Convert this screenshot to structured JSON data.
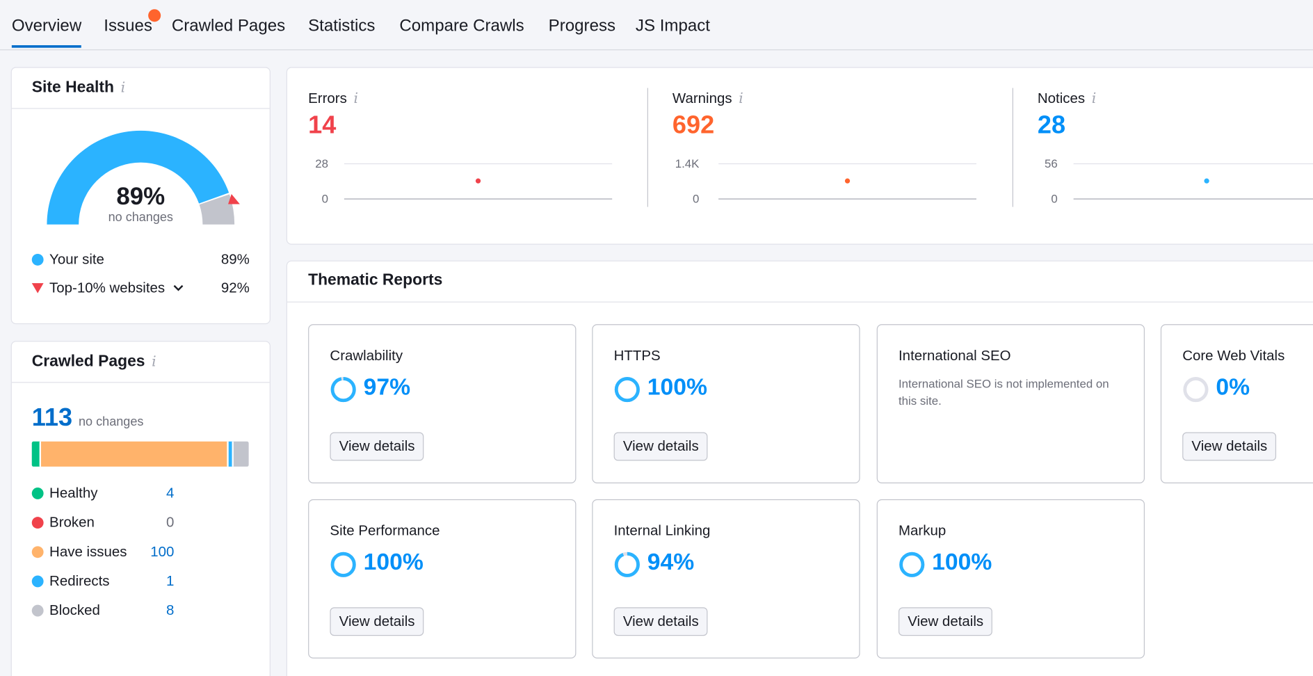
{
  "tabs": [
    {
      "label": "Overview",
      "active": true
    },
    {
      "label": "Issues",
      "has_dot": true
    },
    {
      "label": "Crawled Pages"
    },
    {
      "label": "Statistics"
    },
    {
      "label": "Compare Crawls"
    },
    {
      "label": "Progress"
    },
    {
      "label": "JS Impact"
    }
  ],
  "site_health": {
    "title": "Site Health",
    "info": "i",
    "value": "89%",
    "value_num": 89,
    "subtitle": "no changes",
    "top10_num": 92,
    "legend": [
      {
        "label": "Your site",
        "value": "89%",
        "color": "#2bb3ff"
      },
      {
        "label": "Top-10% websites",
        "value": "92%",
        "color": "#f0424b"
      }
    ]
  },
  "crawled_pages": {
    "title": "Crawled Pages",
    "info": "i",
    "total": "113",
    "total_note": "no changes",
    "bar": [
      {
        "label": "Healthy",
        "count": 4,
        "color": "#00c285"
      },
      {
        "label": "Broken",
        "count": 0,
        "color": "#f0424b"
      },
      {
        "label": "Have issues",
        "count": 100,
        "color": "#ffb36b"
      },
      {
        "label": "Redirects",
        "count": 1,
        "color": "#2bb3ff"
      },
      {
        "label": "Blocked",
        "count": 8,
        "color": "#c2c4cc"
      }
    ],
    "rows": [
      {
        "label": "Healthy",
        "value": "4"
      },
      {
        "label": "Broken",
        "value": "0"
      },
      {
        "label": "Have issues",
        "value": "100"
      },
      {
        "label": "Redirects",
        "value": "1"
      },
      {
        "label": "Blocked",
        "value": "8"
      }
    ]
  },
  "issues": [
    {
      "label": "Errors",
      "info": "i",
      "value": "14",
      "axis_max": "28",
      "axis_min": "0",
      "color": "#f0424b"
    },
    {
      "label": "Warnings",
      "info": "i",
      "value": "692",
      "axis_max": "1.4K",
      "axis_min": "0",
      "color": "#ff642d"
    },
    {
      "label": "Notices",
      "info": "i",
      "value": "28",
      "axis_max": "56",
      "axis_min": "0",
      "color": "#008ff8"
    }
  ],
  "thematic": {
    "title": "Thematic Reports",
    "button_label": "View details",
    "cards": [
      {
        "title": "Crawlability",
        "pct": "97%",
        "pct_num": 97
      },
      {
        "title": "HTTPS",
        "pct": "100%",
        "pct_num": 100
      },
      {
        "title": "International SEO",
        "note": "International SEO is not implemented on this site."
      },
      {
        "title": "Core Web Vitals",
        "pct": "0%",
        "pct_num": 0
      },
      {
        "title": "Site Performance",
        "pct": "100%",
        "pct_num": 100
      },
      {
        "title": "Internal Linking",
        "pct": "94%",
        "pct_num": 94
      },
      {
        "title": "Markup",
        "pct": "100%",
        "pct_num": 100
      }
    ]
  }
}
